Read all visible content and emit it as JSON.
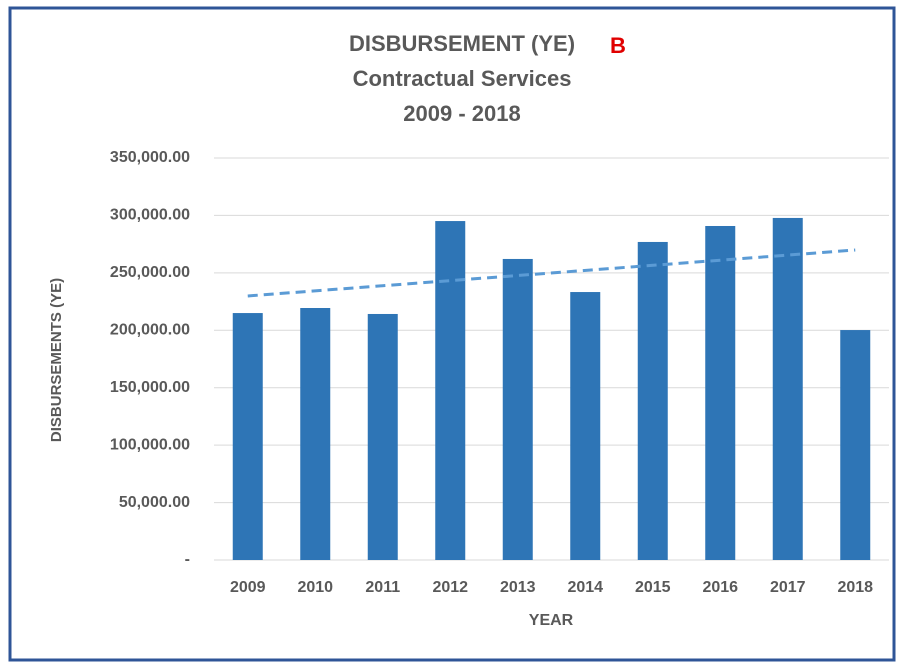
{
  "chart_data": {
    "type": "bar",
    "title": "DISBURSEMENT (YE)",
    "subtitle": [
      "Contractual Services",
      "2009 - 2018"
    ],
    "annotation": "B",
    "y_label": "DISBURSEMENTS (YE)",
    "x_label": "YEAR",
    "categories": [
      "2009",
      "2010",
      "2011",
      "2012",
      "2013",
      "2014",
      "2015",
      "2016",
      "2017",
      "2018"
    ],
    "values": [
      215000,
      219400,
      214200,
      295100,
      262100,
      233300,
      276900,
      290800,
      297800,
      200200
    ],
    "color": "#2e75b6",
    "trendline": {
      "color": "#5b9bd5",
      "values": [
        229900,
        269900
      ]
    },
    "ylim": [
      0,
      350000
    ],
    "yticks": [
      {
        "value": 0,
        "label": "-"
      },
      {
        "value": 50000,
        "label": "50,000.00"
      },
      {
        "value": 100000,
        "label": "100,000.00"
      },
      {
        "value": 150000,
        "label": "150,000.00"
      },
      {
        "value": 200000,
        "label": "200,000.00"
      },
      {
        "value": 250000,
        "label": "250,000.00"
      },
      {
        "value": 300000,
        "label": "300,000.00"
      },
      {
        "value": 350000,
        "label": "350,000.00"
      }
    ],
    "grid": true
  }
}
